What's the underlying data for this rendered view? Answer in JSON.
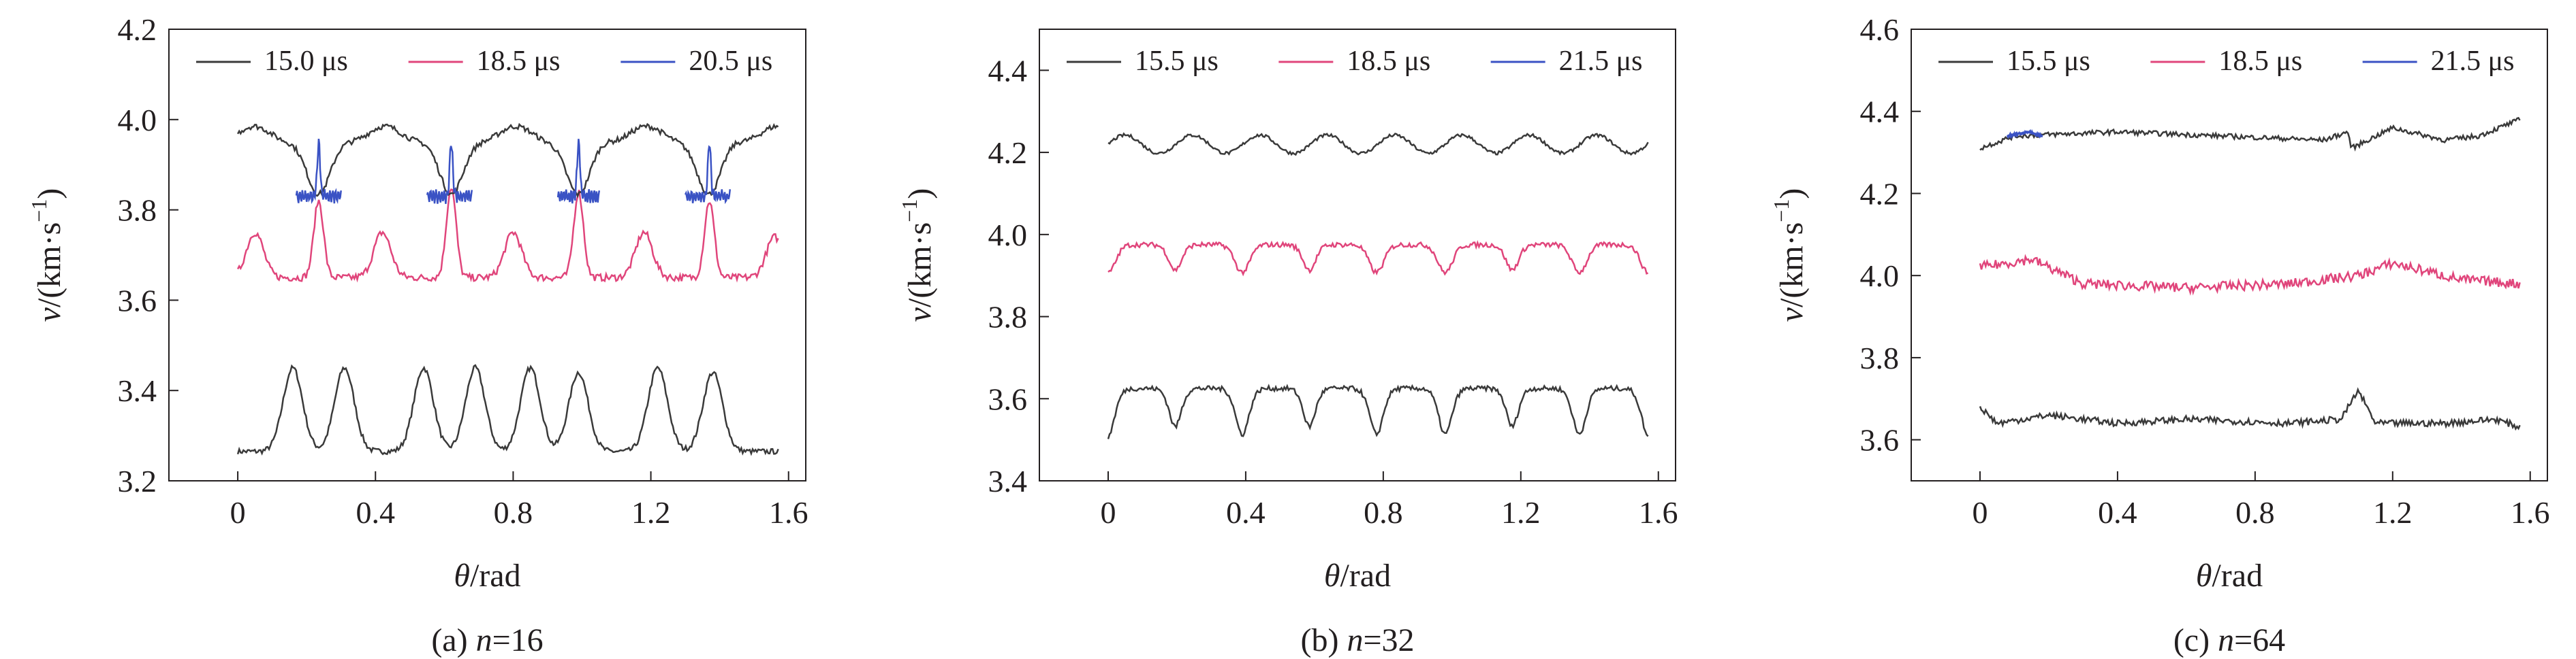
{
  "colors": {
    "black": "#3a3a3a",
    "pink": "#e0457b",
    "blue": "#3a52c4",
    "axis": "#231f20"
  },
  "chart_data": [
    {
      "type": "line",
      "caption": "(a) n=16",
      "caption_prefix": "(a) ",
      "caption_var": "n",
      "caption_suffix": "=16",
      "xlabel_var": "θ",
      "xlabel_unit": "/rad",
      "ylabel_var": "v",
      "ylabel_unit": "/(km·s",
      "ylabel_exp": "−1",
      "ylabel_close": ")",
      "xlim": [
        -0.2,
        1.65
      ],
      "ylim": [
        3.2,
        4.2
      ],
      "xticks": [
        0,
        0.4,
        0.8,
        1.2,
        1.6
      ],
      "xtick_labels": [
        "0",
        "0.4",
        "0.8",
        "1.2",
        "1.6"
      ],
      "yticks": [
        3.2,
        3.4,
        3.6,
        3.8,
        4.0,
        4.2
      ],
      "ytick_labels": [
        "3.2",
        "3.4",
        "3.6",
        "3.8",
        "4.0",
        "4.2"
      ],
      "legend": {
        "position": "top",
        "entries": [
          "15.0 μs",
          "18.5 μs",
          "20.5 μs"
        ]
      },
      "series": [
        {
          "name": "15.0 μs",
          "color": "black",
          "baseline": 3.265,
          "peaks": [
            [
              0.16,
              3.45,
              0.04
            ],
            [
              0.31,
              3.45,
              0.04
            ],
            [
              0.54,
              3.45,
              0.04
            ],
            [
              0.69,
              3.45,
              0.04
            ],
            [
              0.85,
              3.45,
              0.04
            ],
            [
              0.99,
              3.44,
              0.04
            ],
            [
              1.22,
              3.45,
              0.04
            ],
            [
              1.38,
              3.44,
              0.04
            ]
          ],
          "noise": 0.006
        },
        {
          "name": "18.5 μs",
          "color": "pink",
          "baseline": 3.65,
          "peaks": [
            [
              0.05,
              3.75,
              0.035
            ],
            [
              0.235,
              3.82,
              0.02
            ],
            [
              0.42,
              3.75,
              0.035
            ],
            [
              0.62,
              3.85,
              0.02
            ],
            [
              0.8,
              3.75,
              0.035
            ],
            [
              0.99,
              3.84,
              0.02
            ],
            [
              1.18,
              3.75,
              0.035
            ],
            [
              1.37,
              3.82,
              0.02
            ],
            [
              1.56,
              3.74,
              0.035
            ]
          ],
          "noise": 0.008
        },
        {
          "name": "15.0 μs",
          "color": "black",
          "baseline": 3.97,
          "dips": [
            [
              0.235,
              3.82,
              0.05
            ],
            [
              0.62,
              3.82,
              0.05
            ],
            [
              0.99,
              3.82,
              0.05
            ],
            [
              1.37,
              3.82,
              0.05
            ]
          ],
          "noise": 0.006,
          "range": [
            0,
            1.57
          ]
        },
        {
          "name": "20.5 μs",
          "color": "blue",
          "segments": [
            [
              0.17,
              0.3
            ],
            [
              0.55,
              0.68
            ],
            [
              0.93,
              1.05
            ],
            [
              1.3,
              1.43
            ]
          ],
          "centers": [
            0.235,
            0.62,
            0.99,
            1.37
          ],
          "base": 3.83,
          "spike": 3.95
        }
      ]
    },
    {
      "type": "line",
      "caption": "(b) n=32",
      "caption_prefix": "(b) ",
      "caption_var": "n",
      "caption_suffix": "=32",
      "xlabel_var": "θ",
      "xlabel_unit": "/rad",
      "ylabel_var": "v",
      "ylabel_unit": "/(km·s",
      "ylabel_exp": "−1",
      "ylabel_close": ")",
      "xlim": [
        -0.2,
        1.65
      ],
      "ylim": [
        3.4,
        4.5
      ],
      "xticks": [
        0,
        0.4,
        0.8,
        1.2,
        1.6
      ],
      "xtick_labels": [
        "0",
        "0.4",
        "0.8",
        "1.2",
        "1.6"
      ],
      "yticks": [
        3.4,
        3.6,
        3.8,
        4.0,
        4.2,
        4.4
      ],
      "ytick_labels": [
        "3.4",
        "3.6",
        "3.8",
        "4.0",
        "4.2",
        "4.4"
      ],
      "legend": {
        "position": "top",
        "entries": [
          "15.5 μs",
          "18.5 μs",
          "21.5 μs"
        ]
      },
      "series": [
        {
          "name": "15.5 μs",
          "color": "black",
          "wave": {
            "mean": 4.22,
            "amp": 0.022,
            "period": 0.196,
            "phase": 0.0
          },
          "noise": 0.004
        },
        {
          "name": "18.5 μs",
          "color": "pink",
          "plateaus": {
            "base": 3.905,
            "top": 3.975,
            "centers": [
              0.1,
              0.29,
              0.49,
              0.68,
              0.88,
              1.08,
              1.27,
              1.47
            ],
            "width": 0.08
          },
          "noise": 0.006
        },
        {
          "name": "15.5 μs",
          "color": "black",
          "plateaus": {
            "base": 3.495,
            "top": 3.625,
            "centers": [
              0.1,
              0.29,
              0.49,
              0.68,
              0.88,
              1.08,
              1.27,
              1.47
            ],
            "width": 0.085
          },
          "noise": 0.006
        }
      ]
    },
    {
      "type": "line",
      "caption": "(c) n=64",
      "caption_prefix": "(c) ",
      "caption_var": "n",
      "caption_suffix": "=64",
      "xlabel_var": "θ",
      "xlabel_unit": "/rad",
      "ylabel_var": "v",
      "ylabel_unit": "/(km·s",
      "ylabel_exp": "−1",
      "ylabel_close": ")",
      "xlim": [
        -0.2,
        1.65
      ],
      "ylim": [
        3.5,
        4.6
      ],
      "xticks": [
        0,
        0.4,
        0.8,
        1.2,
        1.6
      ],
      "xtick_labels": [
        "0",
        "0.4",
        "0.8",
        "1.2",
        "1.6"
      ],
      "yticks": [
        3.6,
        3.8,
        4.0,
        4.2,
        4.4,
        4.6
      ],
      "ytick_labels": [
        "3.6",
        "3.8",
        "4.0",
        "4.2",
        "4.4",
        "4.6"
      ],
      "legend": {
        "position": "top",
        "entries": [
          "15.5 μs",
          "18.5 μs",
          "21.5 μs"
        ]
      },
      "series": [
        {
          "name": "15.5 μs",
          "color": "black",
          "trend": [
            [
              0,
              4.31
            ],
            [
              0.1,
              4.34
            ],
            [
              0.4,
              4.35
            ],
            [
              0.7,
              4.34
            ],
            [
              1.0,
              4.33
            ],
            [
              1.07,
              4.35
            ],
            [
              1.08,
              4.31
            ],
            [
              1.2,
              4.36
            ],
            [
              1.35,
              4.33
            ],
            [
              1.45,
              4.34
            ],
            [
              1.57,
              4.38
            ]
          ],
          "noise": 0.006
        },
        {
          "name": "21.5 μs",
          "color": "blue",
          "trend": [
            [
              0.08,
              4.34
            ],
            [
              0.14,
              4.35
            ],
            [
              0.18,
              4.34
            ]
          ],
          "noise": 0.003
        },
        {
          "name": "18.5 μs",
          "color": "pink",
          "trend": [
            [
              0,
              4.02
            ],
            [
              0.15,
              4.04
            ],
            [
              0.3,
              3.98
            ],
            [
              0.6,
              3.97
            ],
            [
              0.9,
              3.98
            ],
            [
              1.1,
              4.0
            ],
            [
              1.2,
              4.03
            ],
            [
              1.4,
              3.99
            ],
            [
              1.57,
              3.98
            ]
          ],
          "noise": 0.012
        },
        {
          "name": "15.5 μs",
          "color": "black",
          "trend": [
            [
              0,
              3.68
            ],
            [
              0.05,
              3.64
            ],
            [
              0.2,
              3.66
            ],
            [
              0.4,
              3.64
            ],
            [
              0.6,
              3.65
            ],
            [
              0.9,
              3.64
            ],
            [
              1.05,
              3.65
            ],
            [
              1.1,
              3.72
            ],
            [
              1.15,
              3.64
            ],
            [
              1.35,
              3.64
            ],
            [
              1.5,
              3.65
            ],
            [
              1.57,
              3.63
            ]
          ],
          "noise": 0.008
        }
      ]
    }
  ]
}
